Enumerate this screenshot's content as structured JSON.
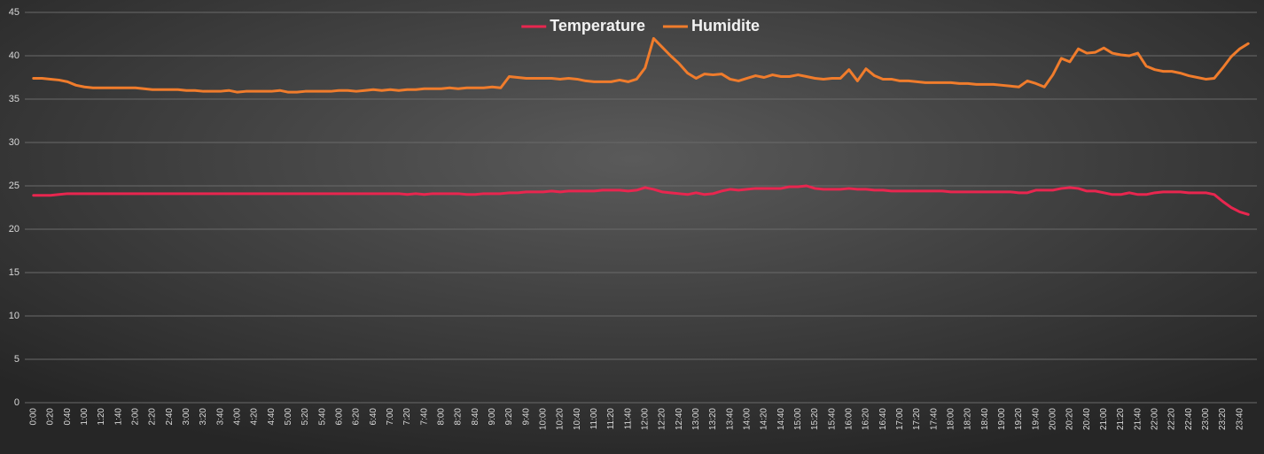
{
  "chart_data": {
    "type": "line",
    "categories": [
      "0:00",
      null,
      "0:20",
      null,
      "0:40",
      null,
      "1:00",
      null,
      "1:20",
      null,
      "1:40",
      null,
      "2:00",
      null,
      "2:20",
      null,
      "2:40",
      null,
      "3:00",
      null,
      "3:20",
      null,
      "3:40",
      null,
      "4:00",
      null,
      "4:20",
      null,
      "4:40",
      null,
      "5:00",
      null,
      "5:20",
      null,
      "5:40",
      null,
      "6:00",
      null,
      "6:20",
      null,
      "6:40",
      null,
      "7:00",
      null,
      "7:20",
      null,
      "7:40",
      null,
      "8:00",
      null,
      "8:20",
      null,
      "8:40",
      null,
      "9:00",
      null,
      "9:20",
      null,
      "9:40",
      null,
      "10:00",
      null,
      "10:20",
      null,
      "10:40",
      null,
      "11:00",
      null,
      "11:20",
      null,
      "11:40",
      null,
      "12:00",
      null,
      "12:20",
      null,
      "12:40",
      null,
      "13:00",
      null,
      "13:20",
      null,
      "13:40",
      null,
      "14:00",
      null,
      "14:20",
      null,
      "14:40",
      null,
      "15:00",
      null,
      "15:20",
      null,
      "15:40",
      null,
      "16:00",
      null,
      "16:20",
      null,
      "16:40",
      null,
      "17:00",
      null,
      "17:20",
      null,
      "17:40",
      null,
      "18:00",
      null,
      "18:20",
      null,
      "18:40",
      null,
      "19:00",
      null,
      "19:20",
      null,
      "19:40",
      null,
      "20:00",
      null,
      "20:20",
      null,
      "20:40",
      null,
      "21:00",
      null,
      "21:20",
      null,
      "21:40",
      null,
      "22:00",
      null,
      "22:20",
      null,
      "22:40",
      null,
      "23:00",
      null,
      "23:20",
      null,
      "23:40",
      null
    ],
    "series": [
      {
        "name": "Temperature",
        "color": "#e8264f",
        "values": [
          23.9,
          23.9,
          23.9,
          24.0,
          24.1,
          24.1,
          24.1,
          24.1,
          24.1,
          24.1,
          24.1,
          24.1,
          24.1,
          24.1,
          24.1,
          24.1,
          24.1,
          24.1,
          24.1,
          24.1,
          24.1,
          24.1,
          24.1,
          24.1,
          24.1,
          24.1,
          24.1,
          24.1,
          24.1,
          24.1,
          24.1,
          24.1,
          24.1,
          24.1,
          24.1,
          24.1,
          24.1,
          24.1,
          24.1,
          24.1,
          24.1,
          24.1,
          24.1,
          24.1,
          24.0,
          24.1,
          24.0,
          24.1,
          24.1,
          24.1,
          24.1,
          24.0,
          24.0,
          24.1,
          24.1,
          24.1,
          24.2,
          24.2,
          24.3,
          24.3,
          24.3,
          24.4,
          24.3,
          24.4,
          24.4,
          24.4,
          24.4,
          24.5,
          24.5,
          24.5,
          24.4,
          24.5,
          24.8,
          24.6,
          24.3,
          24.2,
          24.1,
          24.0,
          24.2,
          24.0,
          24.1,
          24.4,
          24.6,
          24.5,
          24.6,
          24.7,
          24.7,
          24.7,
          24.7,
          24.9,
          24.9,
          25.0,
          24.7,
          24.6,
          24.6,
          24.6,
          24.7,
          24.6,
          24.6,
          24.5,
          24.5,
          24.4,
          24.4,
          24.4,
          24.4,
          24.4,
          24.4,
          24.4,
          24.3,
          24.3,
          24.3,
          24.3,
          24.3,
          24.3,
          24.3,
          24.3,
          24.2,
          24.2,
          24.5,
          24.5,
          24.5,
          24.7,
          24.8,
          24.7,
          24.4,
          24.4,
          24.2,
          24.0,
          24.0,
          24.2,
          24.0,
          24.0,
          24.2,
          24.3,
          24.3,
          24.3,
          24.2,
          24.2,
          24.2,
          24.0,
          23.2,
          22.5,
          22.0,
          21.7
        ]
      },
      {
        "name": "Humidite",
        "color": "#f07c2c",
        "values": [
          37.4,
          37.4,
          37.3,
          37.2,
          37.0,
          36.6,
          36.4,
          36.3,
          36.3,
          36.3,
          36.3,
          36.3,
          36.3,
          36.2,
          36.1,
          36.1,
          36.1,
          36.1,
          36.0,
          36.0,
          35.9,
          35.9,
          35.9,
          36.0,
          35.8,
          35.9,
          35.9,
          35.9,
          35.9,
          36.0,
          35.8,
          35.8,
          35.9,
          35.9,
          35.9,
          35.9,
          36.0,
          36.0,
          35.9,
          36.0,
          36.1,
          36.0,
          36.1,
          36.0,
          36.1,
          36.1,
          36.2,
          36.2,
          36.2,
          36.3,
          36.2,
          36.3,
          36.3,
          36.3,
          36.4,
          36.3,
          37.6,
          37.5,
          37.4,
          37.4,
          37.4,
          37.4,
          37.3,
          37.4,
          37.3,
          37.1,
          37.0,
          37.0,
          37.0,
          37.2,
          37.0,
          37.3,
          38.6,
          42.0,
          41.0,
          40.0,
          39.1,
          38.0,
          37.4,
          37.9,
          37.8,
          37.9,
          37.3,
          37.1,
          37.4,
          37.7,
          37.5,
          37.8,
          37.6,
          37.6,
          37.8,
          37.6,
          37.4,
          37.3,
          37.4,
          37.4,
          38.4,
          37.1,
          38.5,
          37.7,
          37.3,
          37.3,
          37.1,
          37.1,
          37.0,
          36.9,
          36.9,
          36.9,
          36.9,
          36.8,
          36.8,
          36.7,
          36.7,
          36.7,
          36.6,
          36.5,
          36.4,
          37.1,
          36.8,
          36.4,
          37.8,
          39.7,
          39.3,
          40.8,
          40.3,
          40.4,
          40.9,
          40.3,
          40.1,
          40.0,
          40.3,
          38.8,
          38.4,
          38.2,
          38.2,
          38.0,
          37.7,
          37.5,
          37.3,
          37.4,
          38.6,
          39.9,
          40.8,
          41.4
        ]
      }
    ],
    "ylim": [
      0,
      45
    ],
    "yticks": [
      0,
      5,
      10,
      15,
      20,
      25,
      30,
      35,
      40,
      45
    ],
    "grid": true,
    "legend": "top"
  }
}
